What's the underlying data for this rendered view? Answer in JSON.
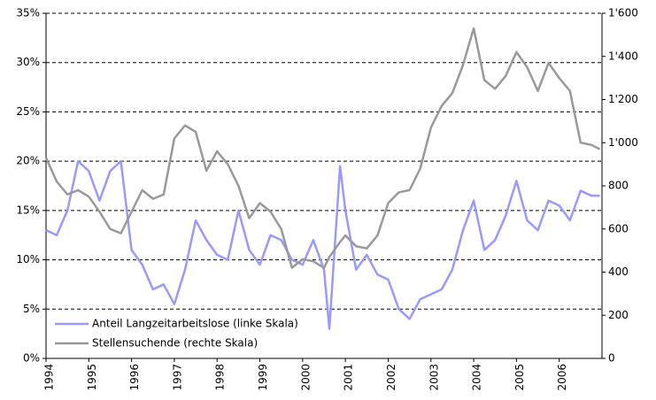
{
  "chart_data": {
    "type": "line",
    "x": [
      1994,
      1994.25,
      1994.5,
      1994.75,
      1995,
      1995.25,
      1995.5,
      1995.75,
      1996,
      1996.25,
      1996.5,
      1996.75,
      1997,
      1997.25,
      1997.5,
      1997.75,
      1998,
      1998.25,
      1998.5,
      1998.75,
      1999,
      1999.25,
      1999.5,
      1999.75,
      2000,
      2000.25,
      2000.5,
      2000.625,
      2000.875,
      2001,
      2001.25,
      2001.5,
      2001.75,
      2002,
      2002.25,
      2002.5,
      2002.75,
      2003,
      2003.25,
      2003.5,
      2003.75,
      2004,
      2004.25,
      2004.5,
      2004.75,
      2005,
      2005.25,
      2005.5,
      2005.75,
      2006,
      2006.25,
      2006.5,
      2006.75,
      2006.95
    ],
    "series": [
      {
        "name": "Anteil Langzeitarbeitslose (linke Skala)",
        "color": "#9999ff",
        "axis": "y",
        "values": [
          13,
          12.5,
          15,
          20,
          19,
          16,
          19,
          20,
          11,
          9.5,
          7,
          7.5,
          5.5,
          9,
          14,
          12,
          10.5,
          10,
          15,
          11,
          9.5,
          12.5,
          12,
          10,
          9.5,
          12,
          9,
          3,
          19.5,
          15,
          9,
          10.5,
          8.5,
          8,
          5,
          4,
          6,
          6.5,
          7,
          9,
          13,
          16,
          11,
          12,
          14.5,
          18,
          14,
          13,
          16,
          15.5,
          14,
          17,
          16.5,
          16.5
        ]
      },
      {
        "name": "Stellensuchende (rechte Skala)",
        "color": "#999999",
        "axis": "y2",
        "values": [
          930,
          820,
          760,
          780,
          750,
          680,
          600,
          580,
          680,
          780,
          740,
          760,
          1020,
          1080,
          1050,
          870,
          960,
          900,
          800,
          650,
          720,
          680,
          600,
          420,
          460,
          450,
          420,
          470,
          540,
          570,
          520,
          510,
          570,
          720,
          770,
          780,
          880,
          1070,
          1170,
          1230,
          1360,
          1530,
          1290,
          1250,
          1310,
          1420,
          1350,
          1240,
          1370,
          1300,
          1240,
          1000,
          990,
          970
        ]
      }
    ],
    "xlim": [
      1994,
      2007
    ],
    "xticks": [
      1994,
      1995,
      1996,
      1997,
      1998,
      1999,
      2000,
      2001,
      2002,
      2003,
      2004,
      2005,
      2006
    ],
    "ylim": [
      0,
      35
    ],
    "yticks": [
      {
        "value": 0,
        "label": "0%"
      },
      {
        "value": 5,
        "label": "5%"
      },
      {
        "value": 10,
        "label": "10%"
      },
      {
        "value": 15,
        "label": "15%"
      },
      {
        "value": 20,
        "label": "20%"
      },
      {
        "value": 25,
        "label": "25%"
      },
      {
        "value": 30,
        "label": "30%"
      },
      {
        "value": 35,
        "label": "35%"
      }
    ],
    "y2lim": [
      0,
      1600
    ],
    "y2ticks": [
      0,
      200,
      400,
      600,
      800,
      {
        "value": 1000,
        "label": "1'000"
      },
      {
        "value": 1200,
        "label": "1'200"
      },
      {
        "value": 1400,
        "label": "1'400"
      },
      {
        "value": 1600,
        "label": "1'600"
      }
    ],
    "grid": true,
    "legend": "lower left"
  }
}
